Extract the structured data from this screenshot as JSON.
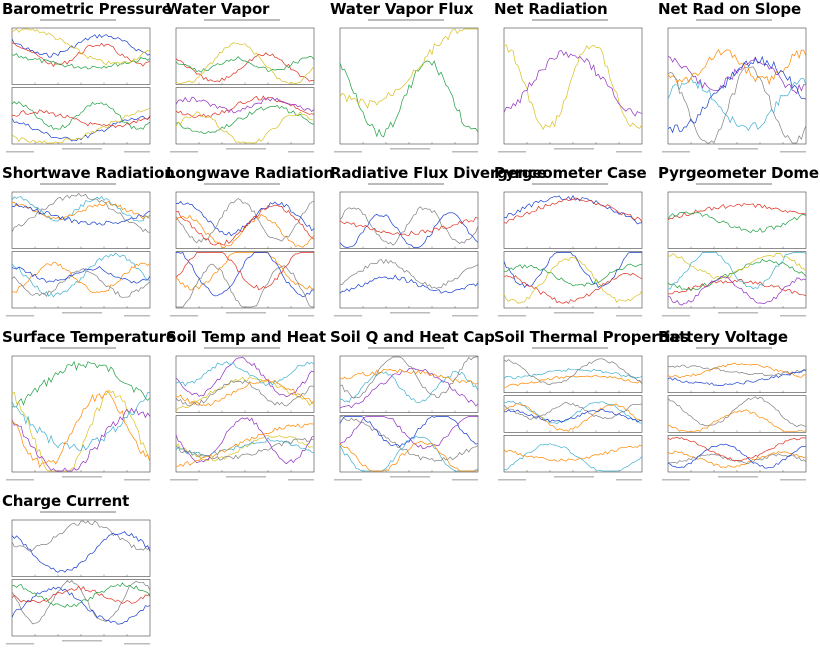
{
  "page": {
    "title": "",
    "panels": [
      {
        "id": "barometric-pressure",
        "label": "Barometric Pressure",
        "subplots": 2
      },
      {
        "id": "water-vapor",
        "label": "Water Vapor",
        "subplots": 2
      },
      {
        "id": "water-vapor-flux",
        "label": "Water Vapor Flux",
        "subplots": 1
      },
      {
        "id": "net-radiation",
        "label": "Net Radiation",
        "subplots": 1
      },
      {
        "id": "net-rad-on-slope",
        "label": "Net Rad on Slope",
        "subplots": 1
      },
      {
        "id": "shortwave-radiation",
        "label": "Shortwave Radiation",
        "subplots": 2
      },
      {
        "id": "longwave-radiation",
        "label": "Longwave Radiation",
        "subplots": 2
      },
      {
        "id": "radiative-flux-divergence",
        "label": "Radiative Flux Divergence",
        "subplots": 2
      },
      {
        "id": "pyrgeometer-case",
        "label": "Pyrgeometer Case",
        "subplots": 2
      },
      {
        "id": "pyrgeometer-dome",
        "label": "Pyrgeometer Dome",
        "subplots": 2
      },
      {
        "id": "surface-temperature",
        "label": "Surface Temperature",
        "subplots": 1
      },
      {
        "id": "soil-temp-and-heat",
        "label": "Soil Temp and Heat",
        "subplots": 2
      },
      {
        "id": "soil-q-and-heat-cap",
        "label": "Soil Q and Heat Cap",
        "subplots": 2
      },
      {
        "id": "soil-thermal-properties",
        "label": "Soil Thermal Properties",
        "subplots": 3
      },
      {
        "id": "battery-voltage",
        "label": "Battery Voltage",
        "subplots": 3
      },
      {
        "id": "charge-current",
        "label": "Charge Current",
        "subplots": 2
      }
    ]
  },
  "colors": {
    "series": [
      "#1a3fd0",
      "#e03020",
      "#20a040",
      "#d8c020",
      "#9030c0",
      "#40b0d0",
      "#ff8800",
      "#808080"
    ],
    "axis": "#333333"
  },
  "icons": {
    "thumbnail": "chart-thumbnail-icon"
  }
}
